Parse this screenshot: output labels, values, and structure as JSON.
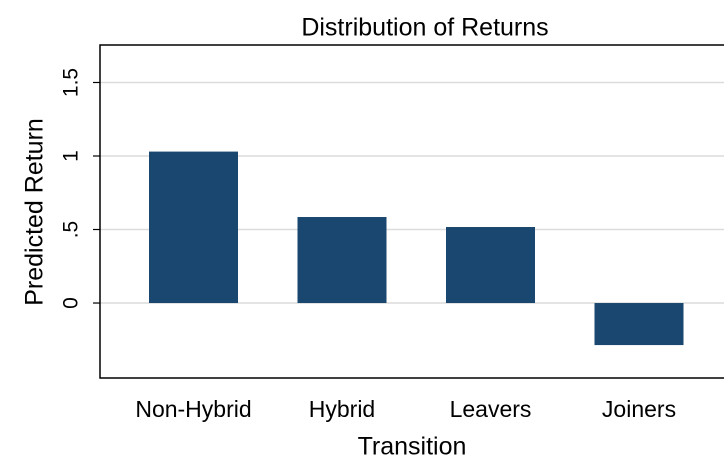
{
  "chart_data": {
    "type": "bar",
    "title": "Distribution of Returns",
    "x_label": "Transition",
    "y_label": "Predicted Return",
    "categories": [
      "Non-Hybrid",
      "Hybrid",
      "Leavers",
      "Joiners"
    ],
    "values": [
      1.03,
      0.585,
      0.517,
      -0.286
    ],
    "color": "#1a476f",
    "ylim": [
      -0.51,
      1.755
    ],
    "yticks": [
      0,
      {
        "value": 0.5,
        "label": ".5"
      },
      1,
      1.5
    ],
    "grid": true
  }
}
